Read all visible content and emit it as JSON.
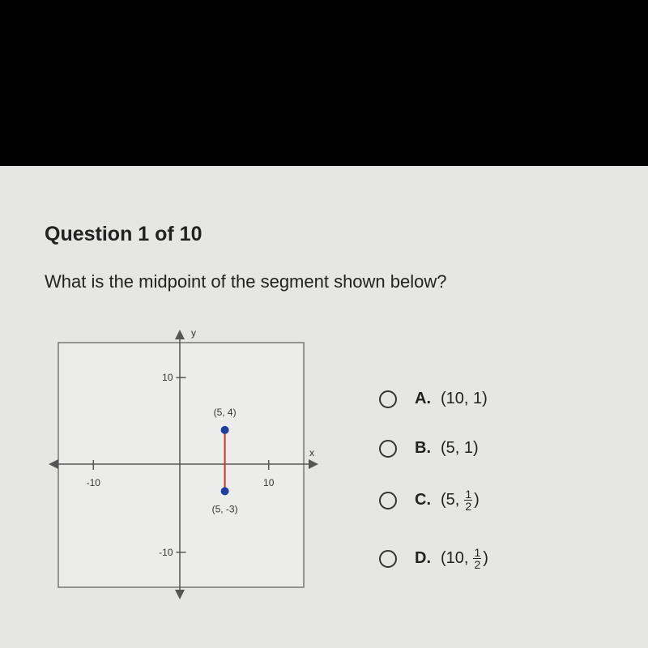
{
  "header": {
    "title": "Question 1 of 10"
  },
  "prompt": "What is the midpoint of the segment shown below?",
  "graph": {
    "x_label": "x",
    "y_label": "y",
    "xlim": [
      -14,
      14
    ],
    "ylim": [
      -14,
      14
    ],
    "xticks": [
      -10,
      10
    ],
    "yticks": [
      -10,
      10
    ],
    "points": [
      {
        "label": "(5, 4)",
        "x": 5,
        "y": 4
      },
      {
        "label": "(5, -3)",
        "x": 5,
        "y": -3
      }
    ]
  },
  "options": [
    {
      "letter": "A.",
      "text": "(10, 1)"
    },
    {
      "letter": "B.",
      "text": "(5, 1)"
    },
    {
      "letter": "C.",
      "prefix": "(5,",
      "numerator": "1",
      "denominator": "2",
      "suffix": ")"
    },
    {
      "letter": "D.",
      "prefix": "(10,",
      "numerator": "1",
      "denominator": "2",
      "suffix": ")"
    }
  ]
}
